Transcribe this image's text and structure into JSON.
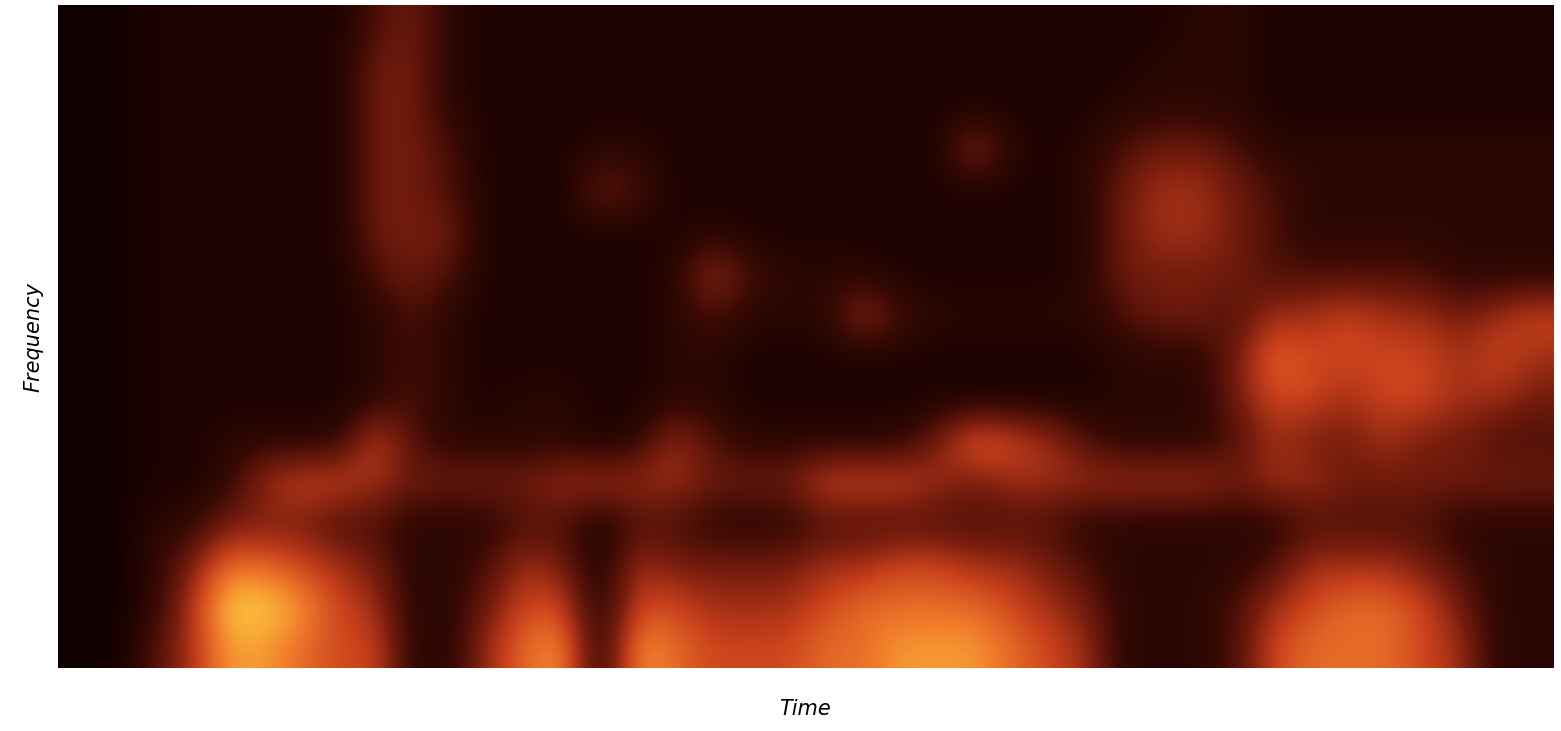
{
  "chart_data": {
    "type": "heatmap",
    "xlabel": "Time",
    "ylabel": "Frequency",
    "tick_labels": false,
    "cells": [
      [
        1,
        1,
        3,
        5,
        8,
        8,
        7,
        6,
        6,
        2,
        2,
        5,
        7,
        8,
        1.5,
        8,
        7,
        6,
        6,
        6,
        7,
        7,
        8,
        8,
        8,
        7,
        6,
        5,
        2,
        2,
        2,
        3,
        6,
        7,
        7,
        7,
        6,
        5,
        2,
        2
      ],
      [
        1,
        1,
        2,
        5,
        9,
        9,
        8,
        6,
        5,
        2,
        2,
        4,
        6,
        6,
        1.5,
        6,
        6,
        5,
        5,
        5,
        6,
        7,
        7,
        7,
        7,
        6,
        5,
        4,
        2,
        2,
        2,
        3,
        5,
        6,
        7,
        7,
        6,
        4,
        2,
        2
      ],
      [
        1,
        1,
        2,
        4,
        7,
        7,
        6,
        5,
        4,
        2,
        2,
        3,
        5,
        4,
        1.5,
        5,
        4,
        4,
        4,
        4,
        5,
        5,
        6,
        6,
        5,
        5,
        4,
        3,
        2,
        2,
        2,
        2,
        3,
        5,
        5,
        5,
        4,
        3,
        2,
        2
      ],
      [
        1,
        1,
        2,
        2,
        4,
        4,
        4,
        3,
        3,
        2,
        2,
        2,
        3,
        3,
        1.5,
        3,
        3,
        2,
        2,
        2,
        3,
        3,
        3,
        3,
        3,
        3,
        3,
        2,
        2,
        2,
        2,
        2,
        2,
        3,
        3,
        3,
        3,
        2,
        2,
        2
      ],
      [
        1,
        1,
        1.5,
        1.5,
        2,
        5,
        6,
        6,
        5,
        4,
        4,
        4,
        4,
        5,
        5,
        5,
        5,
        4,
        4,
        4,
        6,
        6,
        6,
        5,
        4,
        5,
        5,
        5,
        5,
        5,
        5,
        4,
        5,
        5,
        4,
        4,
        4,
        4,
        4,
        4
      ],
      [
        1,
        1,
        1.5,
        1.5,
        2,
        2,
        2,
        2,
        6,
        3,
        2,
        2,
        2,
        2,
        1.5,
        2,
        5,
        3,
        2,
        2,
        2,
        2,
        2,
        4,
        7,
        6,
        5,
        3,
        2,
        2,
        2,
        3,
        5,
        4,
        4,
        5,
        4,
        4,
        3,
        3
      ],
      [
        1,
        1,
        1.5,
        1.5,
        1.5,
        1.5,
        1.5,
        1.5,
        2,
        3,
        2,
        1.5,
        2,
        2,
        1.5,
        1.5,
        2,
        2,
        1.5,
        1.5,
        1.5,
        1.5,
        1.5,
        1.5,
        1.5,
        1.5,
        1.5,
        1.5,
        2,
        2,
        2,
        4,
        6,
        6,
        5,
        6,
        6,
        5,
        5,
        4
      ],
      [
        1,
        1,
        1.5,
        1.5,
        1.5,
        1.5,
        1.5,
        1.5,
        2,
        3,
        2,
        1.5,
        1.5,
        1.5,
        1.5,
        1.5,
        2,
        2,
        1.5,
        1.5,
        1.5,
        1.5,
        1.5,
        1.5,
        1.5,
        1.5,
        1.5,
        1.5,
        2,
        2,
        2,
        4,
        7,
        6,
        6,
        6,
        6,
        5,
        6,
        5
      ],
      [
        1,
        1,
        1.5,
        1.5,
        1.5,
        1.5,
        1.5,
        1.5,
        2,
        3,
        2,
        1.5,
        1.5,
        1.5,
        1.5,
        1.5,
        2,
        3,
        2,
        2,
        2,
        5,
        3,
        2,
        2,
        2,
        2,
        2,
        3,
        4,
        4,
        3,
        5,
        5,
        6,
        5,
        5,
        4,
        5,
        6
      ],
      [
        1,
        1,
        1.5,
        1.5,
        1.5,
        1.5,
        1.5,
        1.5,
        3,
        4,
        3,
        1.5,
        1.5,
        1.5,
        1.5,
        1.5,
        2,
        5,
        3,
        2,
        2,
        2,
        1.5,
        1.5,
        1.5,
        1.5,
        1.5,
        2,
        4,
        4,
        4,
        4,
        3,
        3,
        3,
        3,
        3,
        2,
        2,
        2
      ],
      [
        1,
        1,
        1.5,
        1.5,
        1.5,
        1.5,
        1.5,
        1.5,
        4,
        4,
        4,
        1.5,
        1.5,
        1.5,
        1.5,
        1.5,
        1.5,
        2,
        1.5,
        1.5,
        1.5,
        1.5,
        1.5,
        1.5,
        1.5,
        1.5,
        1.5,
        2,
        4,
        5,
        5,
        4,
        3,
        2,
        2,
        2,
        2,
        2,
        2,
        2
      ],
      [
        1,
        1,
        1.5,
        1.5,
        1.5,
        1.5,
        1.5,
        1.5,
        4,
        4,
        3,
        1.5,
        1.5,
        1.5,
        4,
        3,
        1.5,
        1.5,
        1.5,
        1.5,
        1.5,
        1.5,
        1.5,
        1.5,
        1.5,
        1.5,
        1.5,
        2,
        4,
        5,
        5,
        4,
        3,
        2,
        2,
        2,
        2,
        2,
        2,
        2
      ],
      [
        1,
        1,
        1.5,
        1.5,
        1.5,
        1.5,
        1.5,
        1.5,
        4,
        4,
        3,
        1.5,
        1.5,
        1.5,
        2,
        2,
        1.5,
        1.5,
        1.5,
        1.5,
        1.5,
        1.5,
        1.5,
        1.5,
        5,
        2,
        1.5,
        2,
        3,
        4,
        4,
        3,
        2,
        2,
        2,
        2,
        2,
        2,
        2,
        2
      ],
      [
        1,
        1,
        1.5,
        1.5,
        1.5,
        1.5,
        1.5,
        1.5,
        4,
        4,
        2,
        1.5,
        1.5,
        1.5,
        1.5,
        1.5,
        1.5,
        1.5,
        1.5,
        1.5,
        1.5,
        1.5,
        1.5,
        1.5,
        1.5,
        1.5,
        1.5,
        1.5,
        2,
        2,
        2,
        2,
        1.5,
        1.5,
        1.5,
        1.5,
        1.5,
        1.5,
        1.5,
        1.5
      ],
      [
        1,
        1,
        1.5,
        1.5,
        1.5,
        1.5,
        1.5,
        1.5,
        4,
        4,
        2,
        1.5,
        1.5,
        1.5,
        1.5,
        1.5,
        1.5,
        1.5,
        1.5,
        1.5,
        1.5,
        1.5,
        1.5,
        1.5,
        1.5,
        1.5,
        1.5,
        1.5,
        1.5,
        2,
        2,
        2,
        1.5,
        1.5,
        1.5,
        1.5,
        1.5,
        1.5,
        1.5,
        1.5
      ],
      [
        1,
        1,
        1.5,
        1.5,
        1.5,
        1.5,
        1.5,
        1.5,
        3,
        4,
        2,
        1.5,
        1.5,
        1.5,
        1.5,
        1.5,
        1.5,
        1.5,
        1.5,
        1.5,
        1.5,
        1.5,
        1.5,
        1.5,
        1.5,
        1.5,
        1.5,
        1.5,
        1.5,
        1.5,
        2,
        2,
        1.5,
        1.5,
        1.5,
        1.5,
        1.5,
        1.5,
        1.5,
        1.5
      ]
    ]
  }
}
